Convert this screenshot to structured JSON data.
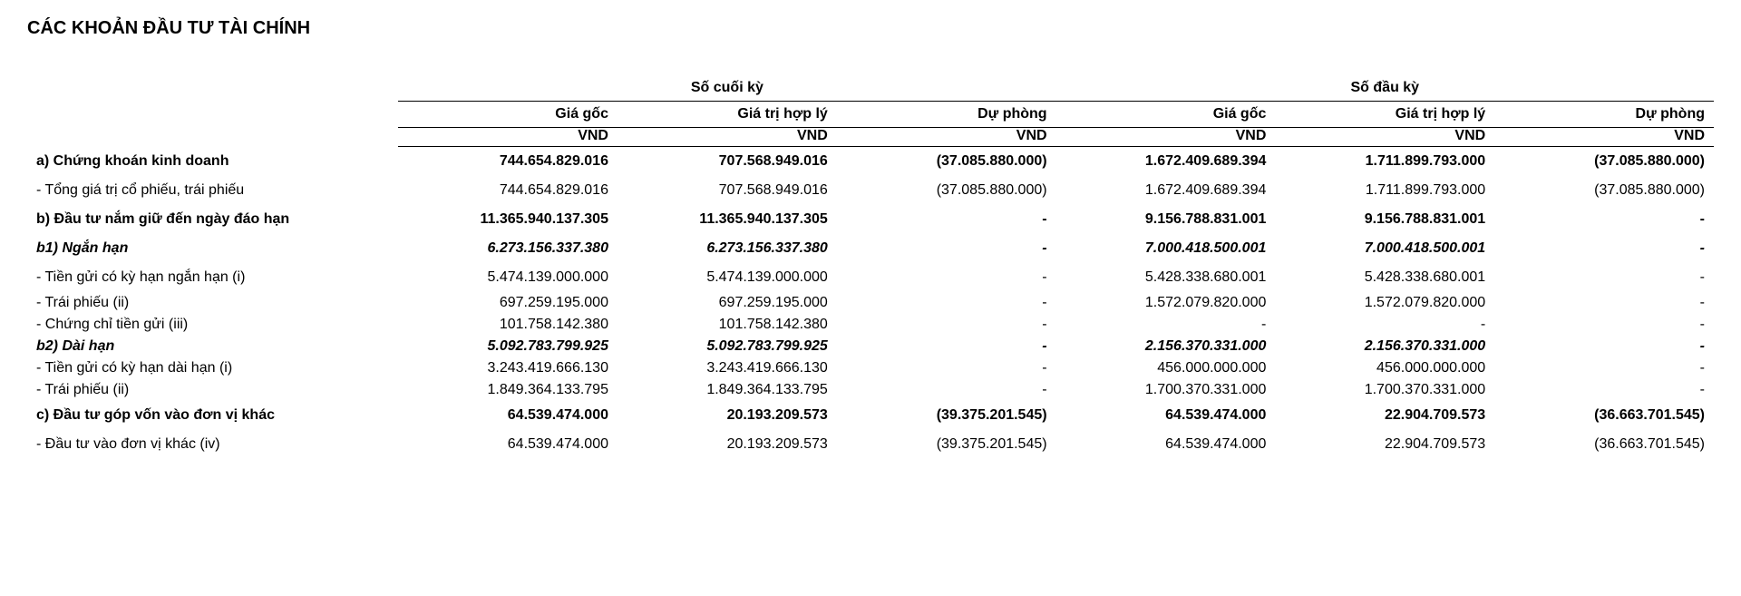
{
  "title": "CÁC KHOẢN ĐẦU TƯ TÀI CHÍNH",
  "groupHeaders": {
    "end": "Số cuối kỳ",
    "begin": "Số đầu kỳ"
  },
  "subHeaders": {
    "cost": "Giá gốc",
    "fair": "Giá trị hợp lý",
    "prov": "Dự phòng"
  },
  "unit": "VND",
  "rows": [
    {
      "style": "boldrow",
      "label": "a) Chứng khoán kinh doanh",
      "v": [
        "744.654.829.016",
        "707.568.949.016",
        "(37.085.880.000)",
        "1.672.409.689.394",
        "1.711.899.793.000",
        "(37.085.880.000)"
      ]
    },
    {
      "style": "",
      "label": "- Tổng giá trị cổ phiếu, trái phiếu",
      "v": [
        "744.654.829.016",
        "707.568.949.016",
        "(37.085.880.000)",
        "1.672.409.689.394",
        "1.711.899.793.000",
        "(37.085.880.000)"
      ]
    },
    {
      "style": "boldrow",
      "label": "b) Đầu tư nắm giữ đến ngày đáo hạn",
      "v": [
        "11.365.940.137.305",
        "11.365.940.137.305",
        "-",
        "9.156.788.831.001",
        "9.156.788.831.001",
        "-"
      ]
    },
    {
      "style": "boldit",
      "label": "b1) Ngắn hạn",
      "v": [
        "6.273.156.337.380",
        "6.273.156.337.380",
        "-",
        "7.000.418.500.001",
        "7.000.418.500.001",
        "-"
      ]
    },
    {
      "style": "",
      "label": "- Tiền gửi có kỳ hạn ngắn hạn (i)",
      "v": [
        "5.474.139.000.000",
        "5.474.139.000.000",
        "-",
        "5.428.338.680.001",
        "5.428.338.680.001",
        "-"
      ]
    },
    {
      "style": "tight",
      "label": "- Trái phiếu (ii)",
      "v": [
        "697.259.195.000",
        "697.259.195.000",
        "-",
        "1.572.079.820.000",
        "1.572.079.820.000",
        "-"
      ]
    },
    {
      "style": "tight",
      "label": "- Chứng chỉ tiền gửi (iii)",
      "v": [
        "101.758.142.380",
        "101.758.142.380",
        "-",
        "-",
        "-",
        "-"
      ]
    },
    {
      "style": "boldit tight",
      "label": "b2) Dài hạn",
      "v": [
        "5.092.783.799.925",
        "5.092.783.799.925",
        "-",
        "2.156.370.331.000",
        "2.156.370.331.000",
        "-"
      ]
    },
    {
      "style": "tight",
      "label": "- Tiền gửi có kỳ hạn dài hạn (i)",
      "v": [
        "3.243.419.666.130",
        "3.243.419.666.130",
        "-",
        "456.000.000.000",
        "456.000.000.000",
        "-"
      ]
    },
    {
      "style": "tight",
      "label": "- Trái phiếu (ii)",
      "v": [
        "1.849.364.133.795",
        "1.849.364.133.795",
        "-",
        "1.700.370.331.000",
        "1.700.370.331.000",
        "-"
      ]
    },
    {
      "style": "boldrow",
      "label": "c) Đầu tư góp vốn vào đơn vị khác",
      "v": [
        "64.539.474.000",
        "20.193.209.573",
        "(39.375.201.545)",
        "64.539.474.000",
        "22.904.709.573",
        "(36.663.701.545)"
      ]
    },
    {
      "style": "",
      "label": "- Đầu tư vào đơn vị khác (iv)",
      "v": [
        "64.539.474.000",
        "20.193.209.573",
        "(39.375.201.545)",
        "64.539.474.000",
        "22.904.709.573",
        "(36.663.701.545)"
      ]
    }
  ]
}
